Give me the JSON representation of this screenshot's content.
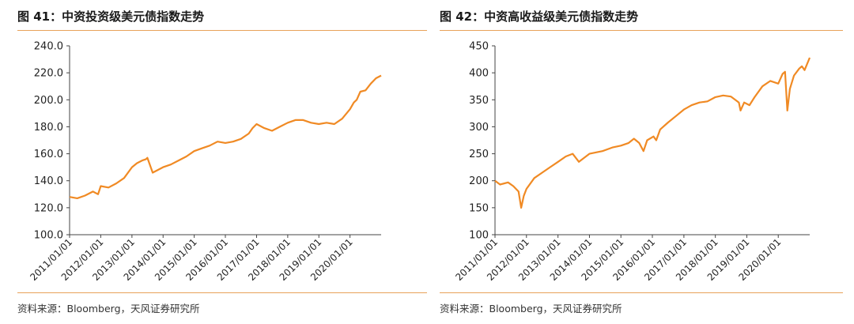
{
  "colors": {
    "accent": "#f08a24",
    "rule": "#e8a25a",
    "axis": "#444444"
  },
  "charts": [
    {
      "title": "图 41：中资投资级美元债指数走势",
      "source": "资料来源：Bloomberg，天风证券研究所"
    },
    {
      "title": "图 42：中资高收益级美元债指数走势",
      "source": "资料来源：Bloomberg，天风证券研究所"
    }
  ],
  "chart_data": [
    {
      "type": "line",
      "title": "",
      "xlabel": "",
      "ylabel": "",
      "ylim": [
        100,
        240
      ],
      "yticks": [
        100,
        120,
        140,
        160,
        180,
        200,
        220,
        240
      ],
      "ytick_labels": [
        "100.0",
        "120.0",
        "140.0",
        "160.0",
        "180.0",
        "200.0",
        "220.0",
        "240.0"
      ],
      "xlim": [
        "2011/01/01",
        "2020/12/31"
      ],
      "xticks": [
        "2011/01/01",
        "2012/01/01",
        "2013/01/01",
        "2014/01/01",
        "2015/01/01",
        "2016/01/01",
        "2017/01/01",
        "2018/01/01",
        "2019/01/01",
        "2020/01/01"
      ],
      "grid": false,
      "series": [
        {
          "x": [
            "2011/01/01",
            "2011/04/01",
            "2011/07/01",
            "2011/10/01",
            "2011/12/01",
            "2012/01/01",
            "2012/04/01",
            "2012/07/01",
            "2012/10/01",
            "2013/01/01",
            "2013/03/01",
            "2013/05/01",
            "2013/06/15",
            "2013/07/01",
            "2013/09/01",
            "2014/01/01",
            "2014/04/01",
            "2014/07/01",
            "2014/10/01",
            "2015/01/01",
            "2015/04/01",
            "2015/07/01",
            "2015/10/01",
            "2016/01/01",
            "2016/04/01",
            "2016/07/01",
            "2016/10/01",
            "2016/11/15",
            "2017/01/01",
            "2017/04/01",
            "2017/07/01",
            "2017/10/01",
            "2018/01/01",
            "2018/04/01",
            "2018/07/01",
            "2018/10/01",
            "2019/01/01",
            "2019/04/01",
            "2019/07/01",
            "2019/10/01",
            "2020/01/01",
            "2020/02/15",
            "2020/03/20",
            "2020/05/01",
            "2020/07/01",
            "2020/09/01",
            "2020/11/01",
            "2020/12/31"
          ],
          "y": [
            128,
            127,
            129,
            132,
            130,
            136,
            135,
            138,
            142,
            150,
            153,
            155,
            156,
            157,
            146,
            150,
            152,
            155,
            158,
            162,
            164,
            166,
            169,
            168,
            169,
            171,
            175,
            179,
            182,
            179,
            177,
            180,
            183,
            185,
            185,
            183,
            182,
            183,
            182,
            186,
            193,
            198,
            200,
            206,
            207,
            212,
            216,
            218
          ]
        }
      ]
    },
    {
      "type": "line",
      "title": "",
      "xlabel": "",
      "ylabel": "",
      "ylim": [
        100,
        450
      ],
      "yticks": [
        100,
        150,
        200,
        250,
        300,
        350,
        400,
        450
      ],
      "ytick_labels": [
        "100",
        "150",
        "200",
        "250",
        "300",
        "350",
        "400",
        "450"
      ],
      "xlim": [
        "2011/01/01",
        "2020/12/31"
      ],
      "xticks": [
        "2011/01/01",
        "2012/01/01",
        "2013/01/01",
        "2014/01/01",
        "2015/01/01",
        "2016/01/01",
        "2017/01/01",
        "2018/01/01",
        "2019/01/01",
        "2020/01/01"
      ],
      "grid": false,
      "series": [
        {
          "x": [
            "2011/01/01",
            "2011/03/01",
            "2011/06/01",
            "2011/08/01",
            "2011/10/01",
            "2011/11/01",
            "2011/12/01",
            "2012/01/01",
            "2012/04/01",
            "2012/07/01",
            "2012/10/01",
            "2013/01/01",
            "2013/04/01",
            "2013/06/20",
            "2013/09/01",
            "2014/01/01",
            "2014/06/01",
            "2014/10/01",
            "2015/01/01",
            "2015/04/01",
            "2015/06/01",
            "2015/08/01",
            "2015/09/20",
            "2015/11/01",
            "2016/01/15",
            "2016/02/15",
            "2016/04/01",
            "2016/07/01",
            "2016/10/01",
            "2017/01/01",
            "2017/04/01",
            "2017/07/01",
            "2017/10/01",
            "2018/01/01",
            "2018/04/01",
            "2018/07/01",
            "2018/10/01",
            "2018/10/20",
            "2018/12/01",
            "2019/02/01",
            "2019/04/01",
            "2019/07/01",
            "2019/10/01",
            "2020/01/01",
            "2020/02/20",
            "2020/03/20",
            "2020/04/15",
            "2020/05/15",
            "2020/07/01",
            "2020/09/01",
            "2020/10/01",
            "2020/11/01",
            "2020/12/31"
          ],
          "y": [
            200,
            193,
            197,
            190,
            180,
            150,
            172,
            185,
            205,
            215,
            225,
            235,
            245,
            250,
            235,
            250,
            255,
            262,
            265,
            270,
            278,
            270,
            255,
            275,
            282,
            275,
            295,
            308,
            320,
            332,
            340,
            345,
            347,
            355,
            358,
            356,
            345,
            330,
            345,
            340,
            355,
            375,
            385,
            380,
            398,
            402,
            330,
            370,
            395,
            408,
            412,
            405,
            428
          ]
        }
      ]
    }
  ]
}
